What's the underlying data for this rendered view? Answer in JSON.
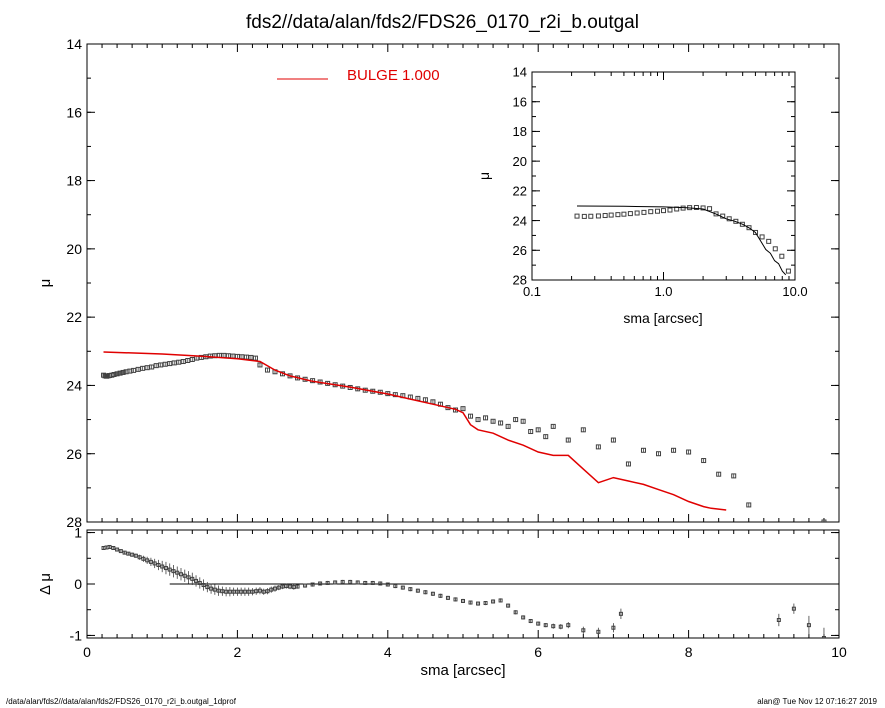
{
  "header": {
    "title": "fds2//data/alan/fds2/FDS26_0170_r2i_b.outgal"
  },
  "footer": {
    "left": "/data/alan/fds2//data/alan/fds2/FDS26_0170_r2i_b.outgal_1dprof",
    "right": "alan@  Tue Nov 12 07:16:27 2019"
  },
  "colors": {
    "axes": "#000000",
    "model": "#e00000",
    "points": "#404040",
    "background": "#ffffff"
  },
  "chart_data": [
    {
      "type": "scatter",
      "panel": "main",
      "xlim": [
        0,
        10
      ],
      "ylim": [
        28,
        14
      ],
      "ylabel": "μ",
      "xticks": [
        0,
        2,
        4,
        6,
        8,
        10
      ],
      "yticks": [
        14,
        16,
        18,
        20,
        22,
        24,
        26,
        28
      ],
      "legend": {
        "label": "BULGE",
        "value": "1.000",
        "placement": "top-left"
      },
      "series": [
        {
          "kind": "points",
          "x": [
            0.22,
            0.24,
            0.26,
            0.28,
            0.3,
            0.33,
            0.36,
            0.4,
            0.44,
            0.48,
            0.52,
            0.57,
            0.62,
            0.68,
            0.74,
            0.8,
            0.86,
            0.92,
            0.98,
            1.04,
            1.1,
            1.16,
            1.22,
            1.28,
            1.34,
            1.4,
            1.46,
            1.52,
            1.58,
            1.64,
            1.7,
            1.76,
            1.82,
            1.88,
            1.94,
            2.0,
            2.06,
            2.12,
            2.18,
            2.24,
            2.3,
            2.4,
            2.5,
            2.6,
            2.7,
            2.8,
            2.9,
            3.0,
            3.1,
            3.2,
            3.3,
            3.4,
            3.5,
            3.6,
            3.7,
            3.8,
            3.9,
            4.0,
            4.1,
            4.2,
            4.3,
            4.4,
            4.5,
            4.6,
            4.7,
            4.8,
            4.9,
            5.0,
            5.1,
            5.2,
            5.3,
            5.4,
            5.5,
            5.6,
            5.7,
            5.8,
            5.9,
            6.0,
            6.1,
            6.2,
            6.4,
            6.6,
            6.8,
            7.0,
            7.2,
            7.4,
            7.6,
            7.8,
            8.0,
            8.2,
            8.4,
            8.6,
            8.8,
            9.8
          ],
          "y": [
            23.7,
            23.72,
            23.73,
            23.72,
            23.71,
            23.7,
            23.68,
            23.66,
            23.64,
            23.62,
            23.6,
            23.58,
            23.56,
            23.53,
            23.5,
            23.48,
            23.46,
            23.42,
            23.4,
            23.38,
            23.36,
            23.34,
            23.32,
            23.3,
            23.27,
            23.24,
            23.2,
            23.18,
            23.16,
            23.14,
            23.13,
            23.12,
            23.12,
            23.13,
            23.14,
            23.15,
            23.16,
            23.17,
            23.18,
            23.2,
            23.4,
            23.55,
            23.6,
            23.66,
            23.72,
            23.78,
            23.82,
            23.86,
            23.9,
            23.94,
            23.98,
            24.02,
            24.06,
            24.1,
            24.14,
            24.17,
            24.2,
            24.24,
            24.27,
            24.3,
            24.34,
            24.38,
            24.42,
            24.48,
            24.55,
            24.65,
            24.72,
            24.68,
            24.9,
            25.0,
            24.95,
            25.05,
            25.1,
            25.2,
            25.0,
            25.05,
            25.35,
            25.3,
            25.5,
            25.2,
            25.6,
            25.3,
            25.8,
            25.6,
            26.3,
            25.9,
            26.0,
            25.9,
            25.95,
            26.2,
            26.6,
            26.65,
            27.5,
            28.0
          ],
          "yerr": [
            0.05,
            0.05,
            0.05,
            0.05,
            0.05,
            0.05,
            0.05,
            0.05,
            0.05,
            0.05,
            0.05,
            0.05,
            0.05,
            0.05,
            0.05,
            0.05,
            0.05,
            0.05,
            0.05,
            0.05,
            0.05,
            0.05,
            0.05,
            0.05,
            0.05,
            0.05,
            0.05,
            0.05,
            0.05,
            0.05,
            0.05,
            0.05,
            0.05,
            0.05,
            0.05,
            0.05,
            0.05,
            0.05,
            0.05,
            0.05,
            0.05,
            0.05,
            0.05,
            0.05,
            0.05,
            0.05,
            0.05,
            0.05,
            0.05,
            0.05,
            0.05,
            0.05,
            0.05,
            0.05,
            0.05,
            0.05,
            0.05,
            0.05,
            0.05,
            0.05,
            0.05,
            0.05,
            0.05,
            0.05,
            0.05,
            0.05,
            0.05,
            0.05,
            0.05,
            0.05,
            0.05,
            0.05,
            0.05,
            0.05,
            0.05,
            0.05,
            0.05,
            0.05,
            0.05,
            0.05,
            0.05,
            0.05,
            0.05,
            0.05,
            0.05,
            0.05,
            0.05,
            0.05,
            0.05,
            0.05,
            0.05,
            0.05,
            0.05,
            0.05
          ]
        },
        {
          "kind": "line",
          "name": "BULGE",
          "x": [
            0.22,
            0.5,
            1.0,
            1.5,
            2.0,
            2.3,
            2.5,
            2.7,
            3.0,
            3.5,
            4.0,
            4.3,
            4.6,
            4.9,
            5.0,
            5.1,
            5.2,
            5.4,
            5.6,
            5.8,
            6.0,
            6.2,
            6.4,
            6.6,
            6.8,
            7.0,
            7.2,
            7.4,
            7.6,
            7.8,
            8.0,
            8.2,
            8.3,
            8.5
          ],
          "y": [
            23.02,
            23.04,
            23.08,
            23.14,
            23.22,
            23.3,
            23.55,
            23.72,
            23.88,
            24.05,
            24.25,
            24.4,
            24.55,
            24.7,
            24.8,
            25.15,
            25.3,
            25.4,
            25.6,
            25.75,
            25.95,
            26.05,
            26.05,
            26.45,
            26.85,
            26.7,
            26.8,
            26.9,
            27.05,
            27.2,
            27.4,
            27.55,
            27.6,
            27.65
          ]
        }
      ]
    },
    {
      "type": "scatter",
      "panel": "inset",
      "xscale": "log",
      "xlim": [
        0.1,
        10.0
      ],
      "ylim": [
        28,
        14
      ],
      "xlabel": "sma [arcsec]",
      "ylabel": "μ",
      "xticks": [
        0.1,
        1.0,
        10.0
      ],
      "xticklabels": [
        "0.1",
        "1.0",
        "10.0"
      ],
      "yticks": [
        14,
        16,
        18,
        20,
        22,
        24,
        26,
        28
      ],
      "series": [
        {
          "kind": "points",
          "x": [
            0.22,
            0.25,
            0.28,
            0.32,
            0.36,
            0.4,
            0.45,
            0.5,
            0.56,
            0.63,
            0.71,
            0.8,
            0.9,
            1.0,
            1.12,
            1.26,
            1.41,
            1.58,
            1.78,
            2.0,
            2.24,
            2.51,
            2.82,
            3.16,
            3.55,
            3.98,
            4.47,
            5.01,
            5.62,
            6.31,
            7.08,
            7.94,
            8.91
          ],
          "y": [
            23.7,
            23.72,
            23.71,
            23.69,
            23.66,
            23.63,
            23.6,
            23.57,
            23.53,
            23.49,
            23.45,
            23.4,
            23.37,
            23.33,
            23.29,
            23.22,
            23.16,
            23.13,
            23.12,
            23.15,
            23.2,
            23.55,
            23.7,
            23.88,
            24.05,
            24.25,
            24.48,
            24.8,
            25.1,
            25.4,
            25.9,
            26.4,
            27.4
          ]
        },
        {
          "kind": "line",
          "x": [
            0.22,
            0.5,
            1.0,
            1.5,
            2.0,
            2.5,
            3.0,
            3.5,
            4.0,
            4.5,
            5.0,
            5.5,
            6.0,
            6.5,
            7.0,
            7.5,
            8.0,
            8.5
          ],
          "y": [
            23.02,
            23.04,
            23.08,
            23.14,
            23.22,
            23.55,
            23.88,
            24.05,
            24.25,
            24.5,
            24.8,
            25.4,
            25.95,
            26.2,
            26.7,
            26.9,
            27.4,
            27.65
          ]
        }
      ]
    },
    {
      "type": "scatter",
      "panel": "residual",
      "xlim": [
        0,
        10
      ],
      "ylim": [
        -1.05,
        1.05
      ],
      "xlabel": "sma [arcsec]",
      "ylabel": "Δ μ",
      "xticks": [
        0,
        2,
        4,
        6,
        8,
        10
      ],
      "yticks": [
        -1,
        0,
        1
      ],
      "reference_line": {
        "y": 0,
        "x_from": 1.1,
        "x_to": 10
      },
      "series": [
        {
          "kind": "points",
          "x": [
            0.22,
            0.26,
            0.3,
            0.35,
            0.4,
            0.45,
            0.5,
            0.55,
            0.6,
            0.65,
            0.7,
            0.75,
            0.8,
            0.85,
            0.9,
            0.95,
            1.0,
            1.05,
            1.1,
            1.15,
            1.2,
            1.25,
            1.3,
            1.35,
            1.4,
            1.45,
            1.5,
            1.55,
            1.6,
            1.65,
            1.7,
            1.75,
            1.8,
            1.85,
            1.9,
            1.95,
            2.0,
            2.05,
            2.1,
            2.15,
            2.2,
            2.25,
            2.3,
            2.35,
            2.4,
            2.45,
            2.5,
            2.55,
            2.6,
            2.65,
            2.7,
            2.75,
            2.8,
            2.9,
            3.0,
            3.1,
            3.2,
            3.3,
            3.4,
            3.5,
            3.6,
            3.7,
            3.8,
            3.9,
            4.0,
            4.1,
            4.2,
            4.3,
            4.4,
            4.5,
            4.6,
            4.7,
            4.8,
            4.9,
            5.0,
            5.1,
            5.2,
            5.3,
            5.4,
            5.5,
            5.6,
            5.7,
            5.8,
            5.9,
            6.0,
            6.1,
            6.2,
            6.3,
            6.4,
            6.6,
            6.8,
            7.0,
            7.1,
            9.2,
            9.4,
            9.6,
            9.8
          ],
          "y": [
            0.7,
            0.71,
            0.72,
            0.7,
            0.67,
            0.64,
            0.61,
            0.59,
            0.57,
            0.55,
            0.52,
            0.49,
            0.46,
            0.43,
            0.4,
            0.37,
            0.34,
            0.31,
            0.28,
            0.25,
            0.22,
            0.19,
            0.16,
            0.13,
            0.1,
            0.06,
            0.02,
            -0.02,
            -0.06,
            -0.09,
            -0.11,
            -0.13,
            -0.14,
            -0.15,
            -0.15,
            -0.15,
            -0.15,
            -0.15,
            -0.15,
            -0.15,
            -0.15,
            -0.14,
            -0.13,
            -0.15,
            -0.14,
            -0.11,
            -0.09,
            -0.07,
            -0.05,
            -0.04,
            -0.05,
            -0.06,
            -0.05,
            -0.03,
            -0.01,
            0.01,
            0.02,
            0.03,
            0.04,
            0.04,
            0.03,
            0.02,
            0.02,
            0.01,
            -0.01,
            -0.04,
            -0.07,
            -0.1,
            -0.13,
            -0.16,
            -0.19,
            -0.23,
            -0.27,
            -0.3,
            -0.33,
            -0.36,
            -0.38,
            -0.37,
            -0.34,
            -0.32,
            -0.42,
            -0.55,
            -0.65,
            -0.72,
            -0.77,
            -0.8,
            -0.82,
            -0.83,
            -0.8,
            -0.9,
            -0.93,
            -0.85,
            -0.58,
            -0.7,
            -0.48,
            -0.8,
            -1.05
          ],
          "yerr": [
            0.03,
            0.03,
            0.03,
            0.03,
            0.03,
            0.03,
            0.03,
            0.03,
            0.04,
            0.04,
            0.05,
            0.06,
            0.07,
            0.08,
            0.09,
            0.1,
            0.11,
            0.12,
            0.12,
            0.12,
            0.12,
            0.12,
            0.12,
            0.12,
            0.12,
            0.11,
            0.11,
            0.11,
            0.1,
            0.1,
            0.1,
            0.1,
            0.09,
            0.09,
            0.09,
            0.08,
            0.08,
            0.08,
            0.08,
            0.08,
            0.07,
            0.07,
            0.07,
            0.06,
            0.06,
            0.06,
            0.06,
            0.05,
            0.05,
            0.05,
            0.05,
            0.05,
            0.04,
            0.04,
            0.04,
            0.04,
            0.04,
            0.04,
            0.04,
            0.04,
            0.04,
            0.04,
            0.04,
            0.04,
            0.04,
            0.04,
            0.04,
            0.04,
            0.04,
            0.04,
            0.04,
            0.04,
            0.04,
            0.04,
            0.04,
            0.04,
            0.04,
            0.04,
            0.04,
            0.04,
            0.04,
            0.04,
            0.04,
            0.04,
            0.04,
            0.04,
            0.05,
            0.05,
            0.06,
            0.07,
            0.08,
            0.09,
            0.1,
            0.12,
            0.1,
            0.18,
            0.2
          ]
        }
      ]
    }
  ]
}
